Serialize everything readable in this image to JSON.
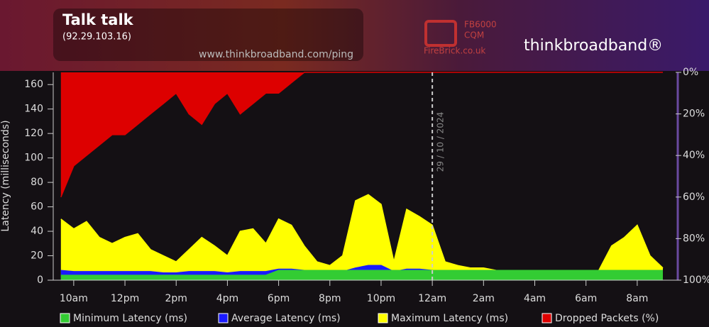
{
  "chart_data": {
    "type": "area",
    "title": "Talk talk",
    "subtitle": "(92.29.103.16)",
    "source": "www.thinkbroadband.com/ping",
    "logos": [
      "FB6000",
      "CQM",
      "FireBrick.co.uk",
      "thinkbroadband®"
    ],
    "y_label": "Latency (milliseconds)",
    "annotation": {
      "text": "29 / 10 / 2024",
      "x": 24
    },
    "x": [
      9.5,
      10,
      10.5,
      11,
      11.5,
      12,
      12.5,
      13,
      13.5,
      14,
      14.5,
      15,
      15.5,
      16,
      16.5,
      17,
      17.5,
      18,
      18.5,
      19,
      19.5,
      20,
      20.5,
      21,
      21.5,
      22,
      22.5,
      23,
      23.5,
      24,
      24.5,
      25,
      25.5,
      26,
      26.5,
      27,
      27.5,
      28,
      28.5,
      29,
      29.5,
      30,
      30.5,
      31,
      31.5,
      32,
      32.5,
      33
    ],
    "xlim": [
      9.2,
      33.5
    ],
    "xticks": [
      {
        "value": 10,
        "label": "10am"
      },
      {
        "value": 12,
        "label": "12pm"
      },
      {
        "value": 14,
        "label": "2pm"
      },
      {
        "value": 16,
        "label": "4pm"
      },
      {
        "value": 18,
        "label": "6pm"
      },
      {
        "value": 20,
        "label": "8pm"
      },
      {
        "value": 22,
        "label": "10pm"
      },
      {
        "value": 24,
        "label": "12am"
      },
      {
        "value": 26,
        "label": "2am"
      },
      {
        "value": 28,
        "label": "4am"
      },
      {
        "value": 30,
        "label": "6am"
      },
      {
        "value": 32,
        "label": "8am"
      }
    ],
    "ylim": [
      0,
      170
    ],
    "yticks": [
      0,
      20,
      40,
      60,
      80,
      100,
      120,
      140,
      160
    ],
    "y2lim": [
      100,
      0
    ],
    "y2ticks": [
      {
        "value": 0,
        "label": "0%"
      },
      {
        "value": 20,
        "label": "20%"
      },
      {
        "value": 40,
        "label": "40%"
      },
      {
        "value": 60,
        "label": "60%"
      },
      {
        "value": 80,
        "label": "80%"
      },
      {
        "value": 100,
        "label": "100%"
      }
    ],
    "series": [
      {
        "name": "Minimum Latency (ms)",
        "color": "#33cc33",
        "values": [
          4,
          4,
          4,
          4,
          4,
          4,
          4,
          4,
          4,
          4,
          4,
          4,
          4,
          4,
          4,
          4,
          4,
          8,
          8,
          8,
          8,
          8,
          8,
          8,
          8,
          8,
          8,
          8,
          8,
          8,
          8,
          8,
          8,
          8,
          8,
          8,
          8,
          8,
          8,
          8,
          8,
          8,
          8,
          8,
          8,
          8,
          8,
          8
        ]
      },
      {
        "name": "Average Latency (ms)",
        "color": "#1a1aff",
        "values": [
          8,
          7,
          7,
          7,
          7,
          7,
          7,
          7,
          6,
          6,
          7,
          7,
          7,
          6,
          7,
          7,
          7,
          9,
          9,
          8,
          7,
          7,
          7,
          10,
          12,
          12,
          7,
          9,
          9,
          8,
          7,
          7,
          7,
          7,
          7,
          7,
          7,
          7,
          7,
          7,
          7,
          7,
          7,
          7,
          8,
          8,
          7,
          7
        ]
      },
      {
        "name": "Maximum Latency (ms)",
        "color": "#ffff00",
        "values": [
          50,
          42,
          48,
          35,
          30,
          35,
          38,
          25,
          20,
          15,
          25,
          35,
          28,
          20,
          40,
          42,
          30,
          50,
          45,
          28,
          15,
          12,
          20,
          65,
          70,
          62,
          15,
          58,
          52,
          45,
          15,
          12,
          10,
          10,
          8,
          8,
          8,
          8,
          8,
          8,
          8,
          8,
          8,
          28,
          35,
          45,
          20,
          10
        ]
      },
      {
        "name": "Dropped Packets (%)",
        "color": "#dd0000",
        "axis": "y2",
        "values": [
          60,
          45,
          40,
          35,
          30,
          30,
          25,
          20,
          15,
          10,
          20,
          25,
          15,
          10,
          20,
          15,
          10,
          10,
          5,
          0,
          0,
          0,
          0,
          0,
          0,
          0,
          0,
          0,
          0,
          0,
          0,
          0,
          0,
          0,
          0,
          0,
          0,
          0,
          0,
          0,
          0,
          0,
          0,
          0,
          0,
          0,
          0,
          0
        ]
      }
    ]
  }
}
